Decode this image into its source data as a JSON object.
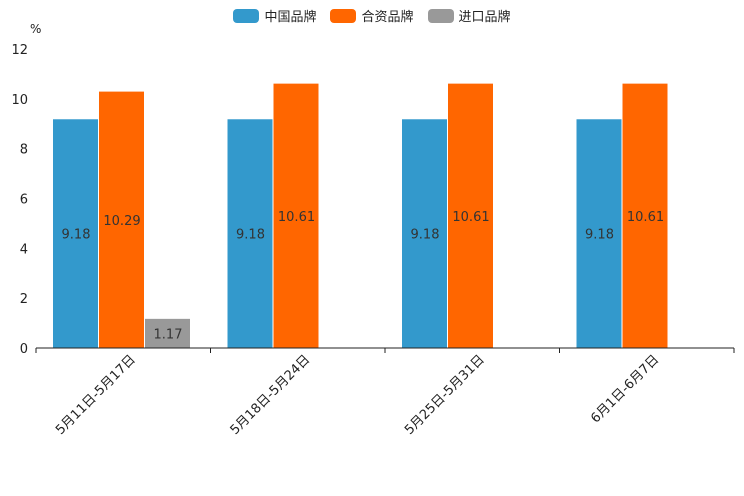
{
  "chart_data": {
    "type": "bar",
    "unit_label": "%",
    "categories": [
      "5月11日-5月17日",
      "5月18日-5月24日",
      "5月25日-5月31日",
      "6月1日-6月7日"
    ],
    "series": [
      {
        "name": "中国品牌",
        "color": "#3399cc",
        "values": [
          9.18,
          9.18,
          9.18,
          9.18
        ],
        "labels": [
          "9.18",
          "9.18",
          "9.18",
          "9.18"
        ]
      },
      {
        "name": "合资品牌",
        "color": "#ff6600",
        "values": [
          10.29,
          10.61,
          10.61,
          10.61
        ],
        "labels": [
          "10.29",
          "10.61",
          "10.61",
          "10.61"
        ]
      },
      {
        "name": "进口品牌",
        "color": "#999999",
        "values": [
          1.17,
          null,
          null,
          null
        ],
        "labels": [
          "1.17",
          null,
          null,
          null
        ]
      }
    ],
    "ylim": [
      0,
      12
    ],
    "yticks": [
      0,
      2,
      4,
      6,
      8,
      10,
      12
    ],
    "legend_position": "top-center",
    "grid": false
  }
}
